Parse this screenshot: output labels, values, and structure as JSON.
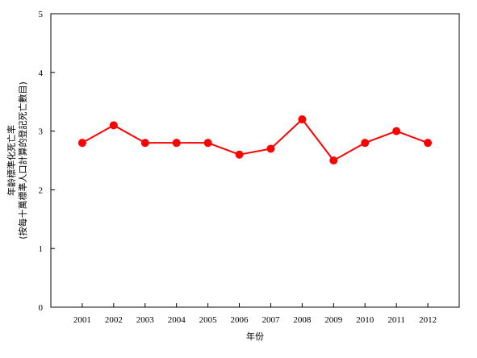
{
  "chart_data": {
    "type": "line",
    "title": "",
    "xlabel": "年份",
    "ylabel_line1": "年齡標準化死亡率",
    "ylabel_line2": "(按每十萬標準人口計算的登記死亡數目)",
    "x": [
      "2001",
      "2002",
      "2003",
      "2004",
      "2005",
      "2006",
      "2007",
      "2008",
      "2009",
      "2010",
      "2011",
      "2012"
    ],
    "series": [
      {
        "values": [
          2.8,
          3.1,
          2.8,
          2.8,
          2.8,
          2.6,
          2.7,
          3.2,
          2.5,
          2.8,
          3.0,
          2.8
        ],
        "color": "#ff0000"
      }
    ],
    "ylim": [
      0,
      5
    ],
    "yticks": [
      "0",
      "1",
      "2",
      "3",
      "4",
      "5"
    ],
    "grid": false,
    "legend": "none"
  }
}
